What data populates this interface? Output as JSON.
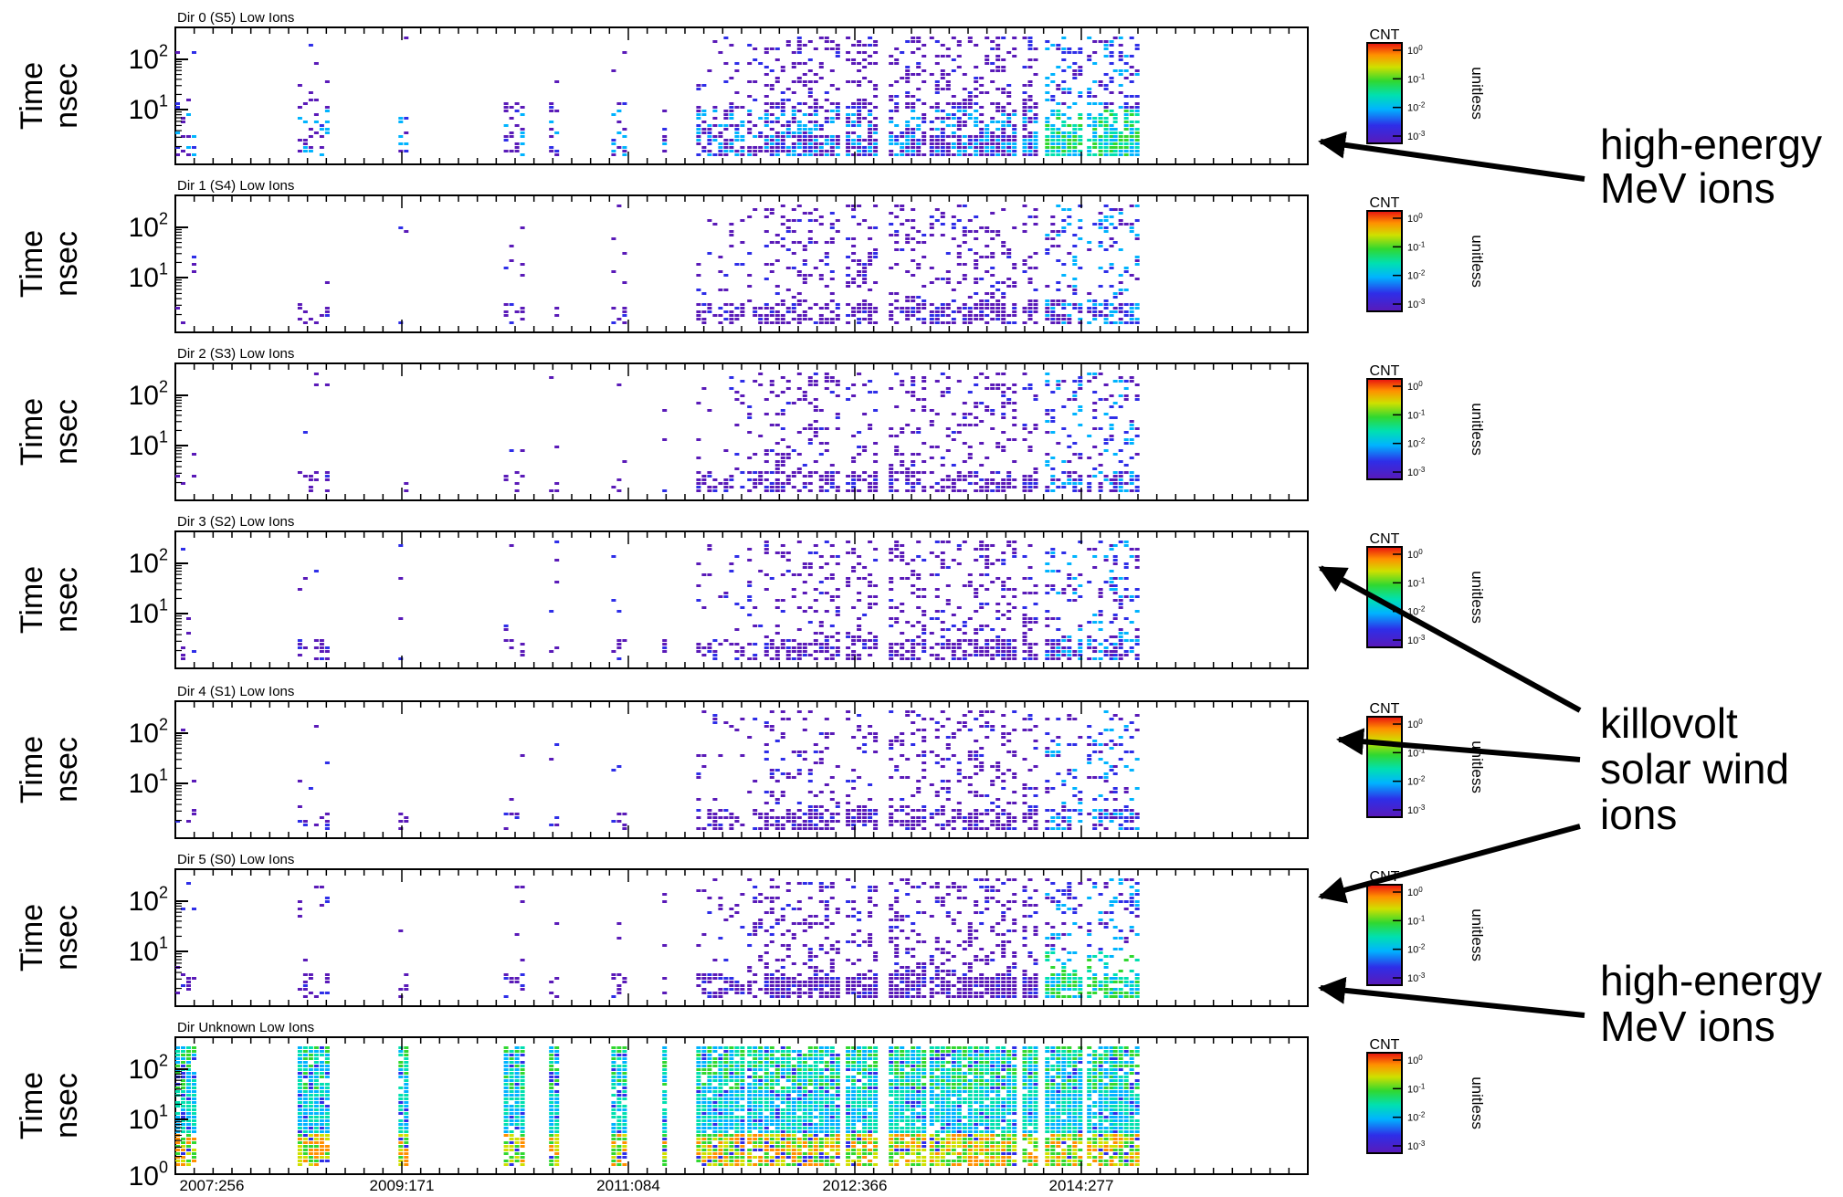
{
  "chart_data": {
    "type": "heatmap",
    "x_ticks": [
      "2007:256",
      "2009:171",
      "2011:084",
      "2012:366",
      "2014:277"
    ],
    "y_axis": {
      "label_line1": "Time",
      "label_line2": "nsec",
      "scale": "log",
      "tick_labels": [
        {
          "base": "10",
          "exp": "2",
          "value": 100
        },
        {
          "base": "10",
          "exp": "1",
          "value": 10
        },
        {
          "base": "10",
          "exp": "0",
          "value": 1
        }
      ]
    },
    "colorbar": {
      "title": "CNT",
      "unit": "unitless",
      "scale": "log",
      "tick_labels": [
        {
          "base": "10",
          "exp": "0"
        },
        {
          "base": "10",
          "exp": "-1"
        },
        {
          "base": "10",
          "exp": "-2"
        },
        {
          "base": "10",
          "exp": "-3"
        }
      ],
      "range": [
        0.001,
        1
      ]
    },
    "panels": [
      {
        "title": "Dir 0 (S5) Low Ions",
        "activity": 0.75
      },
      {
        "title": "Dir 1 (S4) Low Ions",
        "activity": 0.55
      },
      {
        "title": "Dir 2 (S3) Low Ions",
        "activity": 0.5
      },
      {
        "title": "Dir 3 (S2) Low Ions",
        "activity": 0.55
      },
      {
        "title": "Dir 4 (S1) Low Ions",
        "activity": 0.5
      },
      {
        "title": "Dir 5 (S0) Low Ions",
        "activity": 0.7
      },
      {
        "title": "Dir Unknown Low Ions",
        "activity": 1.0
      }
    ],
    "annotations": [
      {
        "lines": [
          "high-energy",
          "MeV ions"
        ]
      },
      {
        "lines": [
          "killovolt",
          "solar wind",
          "ions"
        ]
      },
      {
        "lines": [
          "high-energy",
          "MeV ions"
        ]
      }
    ],
    "colors": {
      "scale": [
        "#5a1ab8",
        "#2e2ee8",
        "#00b4ff",
        "#00e0b0",
        "#30d830",
        "#d0e000",
        "#ff9000",
        "#e81010"
      ],
      "axis": "#000000"
    }
  }
}
